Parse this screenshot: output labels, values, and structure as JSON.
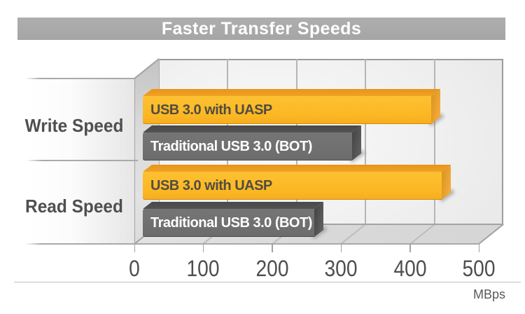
{
  "title": "Faster Transfer Speeds",
  "axis": {
    "ticks": [
      "0",
      "100",
      "200",
      "300",
      "400",
      "500"
    ],
    "unit_label": "MBps"
  },
  "categories": [
    "Write Speed",
    "Read Speed"
  ],
  "chart_data": {
    "type": "bar",
    "orientation": "horizontal",
    "style": "3d",
    "title": "Faster Transfer Speeds",
    "categories": [
      "Write Speed",
      "Read Speed"
    ],
    "series": [
      {
        "name": "USB 3.0 with UASP",
        "color": "#fbb723",
        "values": [
          410,
          425
        ]
      },
      {
        "name": "Traditional USB 3.0 (BOT)",
        "color": "#6c6c6c",
        "values": [
          295,
          240
        ]
      }
    ],
    "xlabel": "MBps",
    "x_ticks": [
      0,
      100,
      200,
      300,
      400,
      500
    ],
    "xlim": [
      0,
      500
    ],
    "grid": "vertical",
    "legend": "labels-on-bars"
  },
  "colors": {
    "banner": "#a9a9a9",
    "title_text": "#ffffff",
    "uasp_bar": "#fbb723",
    "bot_bar": "#6c6c6c",
    "uasp_label_text": "#514c41",
    "bot_label_text": "#ffffff",
    "axis_text": "#4e4e4e",
    "wall": "#efefef",
    "floor": "#d8d8d8"
  }
}
